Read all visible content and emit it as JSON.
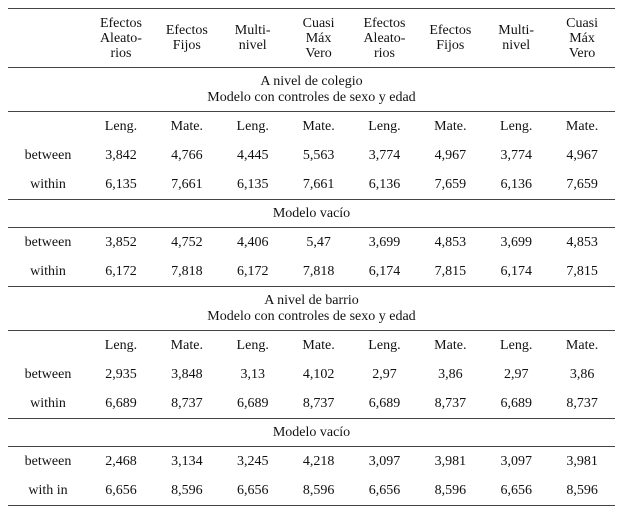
{
  "table": {
    "columns": [
      [
        "Efectos",
        "Aleato-",
        "rios"
      ],
      [
        "Efectos",
        "Fijos"
      ],
      [
        "Multi-",
        "nivel"
      ],
      [
        "Cuasi",
        "Máx",
        "Vero"
      ],
      [
        "Efectos",
        "Aleato-",
        "rios"
      ],
      [
        "Efectos",
        "Fijos"
      ],
      [
        "Multi-",
        "nivel"
      ],
      [
        "Cuasi",
        "Máx",
        "Vero"
      ]
    ],
    "sections": [
      {
        "title": [
          "A nivel de colegio",
          "Modelo con controles de sexo y edad"
        ],
        "subheader": [
          "Leng.",
          "Mate.",
          "Leng.",
          "Mate.",
          "Leng.",
          "Mate.",
          "Leng.",
          "Mate."
        ],
        "rows": [
          {
            "label": "between",
            "values": [
              "3,842",
              "4,766",
              "4,445",
              "5,563",
              "3,774",
              "4,967",
              "3,774",
              "4,967"
            ]
          },
          {
            "label": "within",
            "values": [
              "6,135",
              "7,661",
              "6,135",
              "7,661",
              "6,136",
              "7,659",
              "6,136",
              "7,659"
            ]
          }
        ]
      },
      {
        "title": [
          "Modelo vacío"
        ],
        "rows": [
          {
            "label": "between",
            "values": [
              "3,852",
              "4,752",
              "4,406",
              "5,47",
              "3,699",
              "4,853",
              "3,699",
              "4,853"
            ]
          },
          {
            "label": "within",
            "values": [
              "6,172",
              "7,818",
              "6,172",
              "7,818",
              "6,174",
              "7,815",
              "6,174",
              "7,815"
            ]
          }
        ]
      },
      {
        "title": [
          "A nivel de barrio",
          "Modelo con controles de sexo y edad"
        ],
        "subheader": [
          "Leng.",
          "Mate.",
          "Leng.",
          "Mate.",
          "Leng.",
          "Mate.",
          "Leng.",
          "Mate."
        ],
        "rows": [
          {
            "label": "between",
            "values": [
              "2,935",
              "3,848",
              "3,13",
              "4,102",
              "2,97",
              "3,86",
              "2,97",
              "3,86"
            ]
          },
          {
            "label": "within",
            "values": [
              "6,689",
              "8,737",
              "6,689",
              "8,737",
              "6,689",
              "8,737",
              "6,689",
              "8,737"
            ]
          }
        ]
      },
      {
        "title": [
          "Modelo vacío"
        ],
        "rows": [
          {
            "label": "between",
            "values": [
              "2,468",
              "3,134",
              "3,245",
              "4,218",
              "3,097",
              "3,981",
              "3,097",
              "3,981"
            ]
          },
          {
            "label": "with in",
            "values": [
              "6,656",
              "8,596",
              "6,656",
              "8,596",
              "6,656",
              "8,596",
              "6,656",
              "8,596"
            ]
          }
        ]
      }
    ]
  }
}
